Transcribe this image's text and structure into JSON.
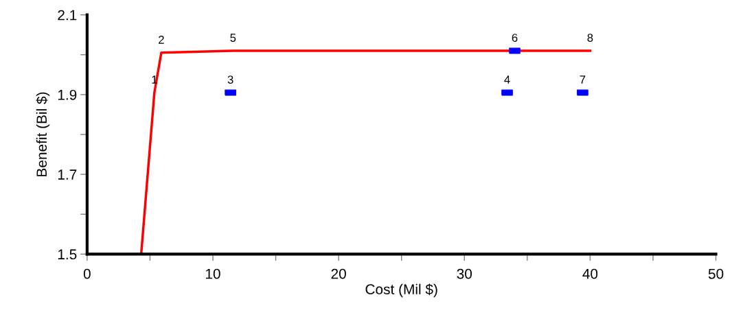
{
  "chart_data": {
    "type": "line",
    "xlabel": "Cost (Mil $)",
    "ylabel": "Benefit (Bil $)",
    "xlim": [
      0,
      50
    ],
    "ylim": [
      1.5,
      2.1
    ],
    "xticks": [
      0,
      {
        "value": 5,
        "label": null
      },
      10,
      {
        "value": 15,
        "label": null
      },
      20,
      {
        "value": 25,
        "label": null
      },
      30,
      {
        "value": 35,
        "label": null
      },
      40,
      {
        "value": 45,
        "label": null
      },
      50
    ],
    "yticks": [
      1.5,
      {
        "value": 1.6,
        "label": null
      },
      1.7,
      {
        "value": 1.8,
        "label": null
      },
      1.9,
      {
        "value": 2.0,
        "label": null
      },
      2.1
    ],
    "grid": false,
    "legend": false,
    "series": [
      {
        "color": "#ff0000",
        "marker": "none",
        "line_style": "solid",
        "x": [
          4.3,
          5.35,
          5.9,
          11.6,
          40
        ],
        "values": [
          1.5,
          1.905,
          2.005,
          2.01,
          2.01
        ]
      },
      {
        "type": "scatter",
        "color": "#0000ff",
        "marker": "square",
        "x": [
          11.4,
          33.4,
          34.0,
          39.4
        ],
        "values": [
          1.905,
          1.905,
          2.01,
          1.905
        ]
      }
    ],
    "annotations": [
      {
        "text": "1",
        "x": 5.35,
        "y": 1.905
      },
      {
        "text": "2",
        "x": 5.9,
        "y": 2.005
      },
      {
        "text": "3",
        "x": 11.4,
        "y": 1.905
      },
      {
        "text": "4",
        "x": 33.4,
        "y": 1.905
      },
      {
        "text": "5",
        "x": 11.6,
        "y": 2.01
      },
      {
        "text": "6",
        "x": 34.0,
        "y": 2.01
      },
      {
        "text": "7",
        "x": 39.4,
        "y": 1.905
      },
      {
        "text": "8",
        "x": 40,
        "y": 2.01
      }
    ]
  }
}
